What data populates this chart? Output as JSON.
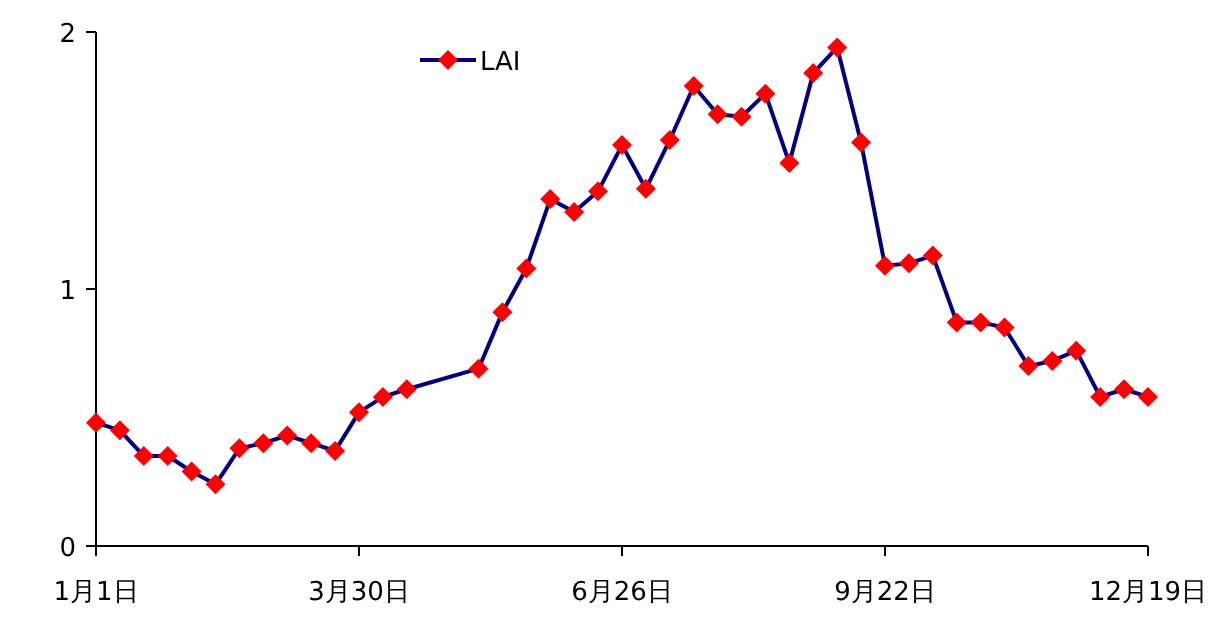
{
  "chart_data": {
    "type": "line",
    "legend": "top",
    "marker": "diamond",
    "line_style": "solid",
    "grid": false,
    "x": [
      "--01-01",
      "--01-09",
      "--01-17",
      "--01-25",
      "--02-02",
      "--02-10",
      "--02-18",
      "--02-26",
      "--03-06",
      "--03-14",
      "--03-22",
      "--03-30",
      "--04-07",
      "--04-15",
      "--05-09",
      "--05-17",
      "--05-25",
      "--06-02",
      "--06-10",
      "--06-18",
      "--06-26",
      "--07-04",
      "--07-12",
      "--07-20",
      "--07-28",
      "--08-05",
      "--08-13",
      "--08-21",
      "--08-29",
      "--09-06",
      "--09-14",
      "--09-22",
      "--09-30",
      "--10-08",
      "--10-16",
      "--10-24",
      "--11-01",
      "--11-09",
      "--11-17",
      "--11-25",
      "--12-03",
      "--12-11",
      "--12-19"
    ],
    "series": [
      {
        "name": "LAI",
        "color": "#000080",
        "colors": [
          "#ff0000",
          "#ff0000",
          "#ff0000",
          "#ff0000",
          "#ff0000",
          "#ff0000",
          "#ff0000",
          "#ff0000",
          "#ff0000",
          "#ff0000",
          "#ff0000",
          "#ff0000",
          "#ff0000",
          "#ff0000",
          "#ff0000",
          "#ff0000",
          "#ff0000",
          "#ff0000",
          "#ff0000",
          "#ff0000",
          "#ff0000",
          "#ff0000",
          "#ff0000",
          "#ff0000",
          "#ff0000",
          "#ff0000",
          "#ff0000",
          "#ff0000",
          "#ff0000",
          "#ff0000",
          "#ff0000",
          "#ff0000",
          "#ff0000",
          "#ff0000",
          "#ff0000",
          "#ff0000",
          "#ff0000",
          "#ff0000",
          "#ff0000",
          "#ff0000",
          "#ff0000",
          "#ff0000",
          "#ff0000"
        ],
        "values": [
          0.48,
          0.45,
          0.35,
          0.35,
          0.29,
          0.24,
          0.38,
          0.4,
          0.43,
          0.4,
          0.37,
          0.52,
          0.58,
          0.61,
          0.69,
          0.91,
          1.08,
          1.35,
          1.3,
          1.38,
          1.56,
          1.39,
          1.58,
          1.79,
          1.68,
          1.67,
          1.76,
          1.49,
          1.84,
          1.94,
          1.57,
          1.09,
          1.1,
          1.13,
          0.87,
          0.87,
          0.85,
          0.7,
          0.72,
          0.76,
          0.58,
          0.61,
          0.58
        ]
      }
    ],
    "xlim": [
      "--01-01",
      "--12-19"
    ],
    "xticks": [
      {
        "value": "--01-01",
        "label": "1月1日"
      },
      {
        "value": "--03-30",
        "label": "3月30日"
      },
      {
        "value": "--06-26",
        "label": "6月26日"
      },
      {
        "value": "--09-22",
        "label": "9月22日"
      },
      {
        "value": "--12-19",
        "label": "12月19日"
      }
    ],
    "ylim": [
      0,
      2
    ],
    "yticks": [
      0,
      1,
      2
    ]
  }
}
